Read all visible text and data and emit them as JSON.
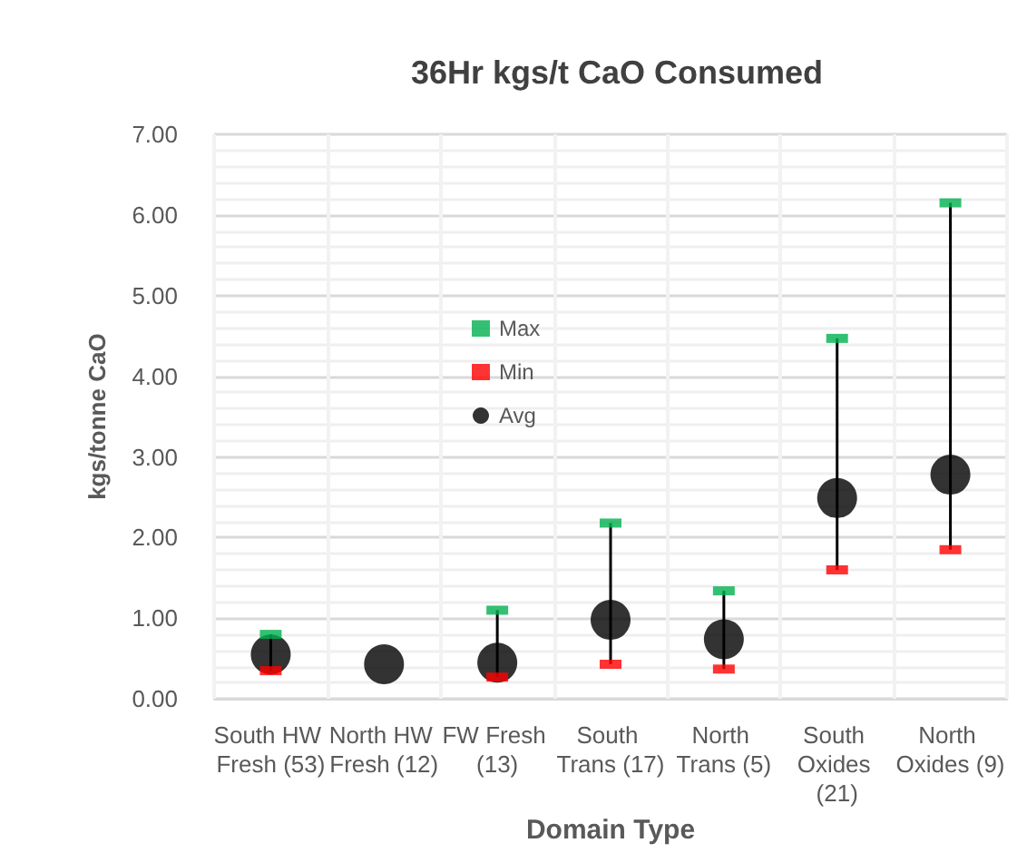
{
  "chart_data": {
    "type": "scatter",
    "title": "36Hr kgs/t CaO Consumed",
    "xlabel": "Domain Type",
    "ylabel": "kgs/tonne CaO",
    "categories": [
      "South HW Fresh (53)",
      "North HW Fresh (12)",
      "FW Fresh (13)",
      "South Trans (17)",
      "North Trans (5)",
      "South Oxides (21)",
      "North Oxides (9)"
    ],
    "series": [
      {
        "name": "Max",
        "color": "#00b050",
        "values": [
          0.8,
          null,
          1.1,
          2.18,
          1.34,
          4.47,
          6.15
        ]
      },
      {
        "name": "Min",
        "color": "#ff0000",
        "values": [
          0.35,
          null,
          0.27,
          0.43,
          0.37,
          1.6,
          1.85
        ]
      },
      {
        "name": "Avg",
        "color": "#000000",
        "marker": "circle",
        "values": [
          0.55,
          0.43,
          0.45,
          0.98,
          0.74,
          2.49,
          2.78
        ]
      }
    ],
    "ylim": [
      0,
      7
    ],
    "yticks": [
      {
        "value": 0,
        "label": "0.00"
      },
      {
        "value": 1,
        "label": "1.00"
      },
      {
        "value": 2,
        "label": "2.00"
      },
      {
        "value": 3,
        "label": "3.00"
      },
      {
        "value": 4,
        "label": "4.00"
      },
      {
        "value": 5,
        "label": "5.00"
      },
      {
        "value": 6,
        "label": "6.00"
      },
      {
        "value": 7,
        "label": "7.00"
      }
    ],
    "grid": true,
    "legend": "top left"
  }
}
